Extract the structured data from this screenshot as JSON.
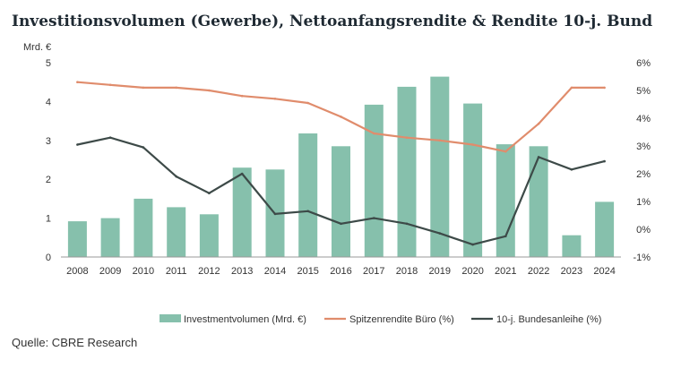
{
  "title": "Investitionsvolumen (Gewerbe), Nettoanfangsrendite & Rendite 10-j. Bund",
  "source": "Quelle: CBRE Research",
  "chart_data": {
    "type": "bar",
    "categories": [
      "2008",
      "2009",
      "2010",
      "2011",
      "2012",
      "2013",
      "2014",
      "2015",
      "2016",
      "2017",
      "2018",
      "2019",
      "2020",
      "2021",
      "2022",
      "2023",
      "2024"
    ],
    "left_axis": {
      "unit_label": "Mrd. €",
      "range": [
        0,
        5
      ],
      "ticks": [
        "0",
        "1",
        "2",
        "3",
        "4",
        "5"
      ]
    },
    "right_axis": {
      "range": [
        -1,
        6
      ],
      "ticks": [
        "-1%",
        "0%",
        "1%",
        "2%",
        "3%",
        "4%",
        "5%",
        "6%"
      ]
    },
    "grid": false,
    "legend_position": "bottom",
    "series": [
      {
        "name": "Investmentvolumen (Mrd. €)",
        "kind": "bar",
        "axis": "left",
        "color": "#86c0ac",
        "values": [
          0.92,
          1.0,
          1.5,
          1.28,
          1.1,
          2.3,
          2.25,
          3.18,
          2.85,
          3.92,
          4.38,
          4.64,
          3.95,
          2.9,
          2.85,
          0.56,
          1.42
        ]
      },
      {
        "name": "Spitzenrendite Büro (%)",
        "kind": "line",
        "axis": "right",
        "color": "#e08c6c",
        "values": [
          5.3,
          5.2,
          5.1,
          5.1,
          5.0,
          4.8,
          4.7,
          4.55,
          4.05,
          3.45,
          3.3,
          3.2,
          3.05,
          2.8,
          3.8,
          5.1,
          5.1
        ]
      },
      {
        "name": "10-j. Bundesanleihe (%)",
        "kind": "line",
        "axis": "right",
        "color": "#3d4a48",
        "values": [
          3.05,
          3.3,
          2.95,
          1.9,
          1.3,
          2.0,
          0.55,
          0.65,
          0.2,
          0.4,
          0.2,
          -0.15,
          -0.55,
          -0.25,
          2.6,
          2.15,
          2.45
        ]
      }
    ]
  }
}
